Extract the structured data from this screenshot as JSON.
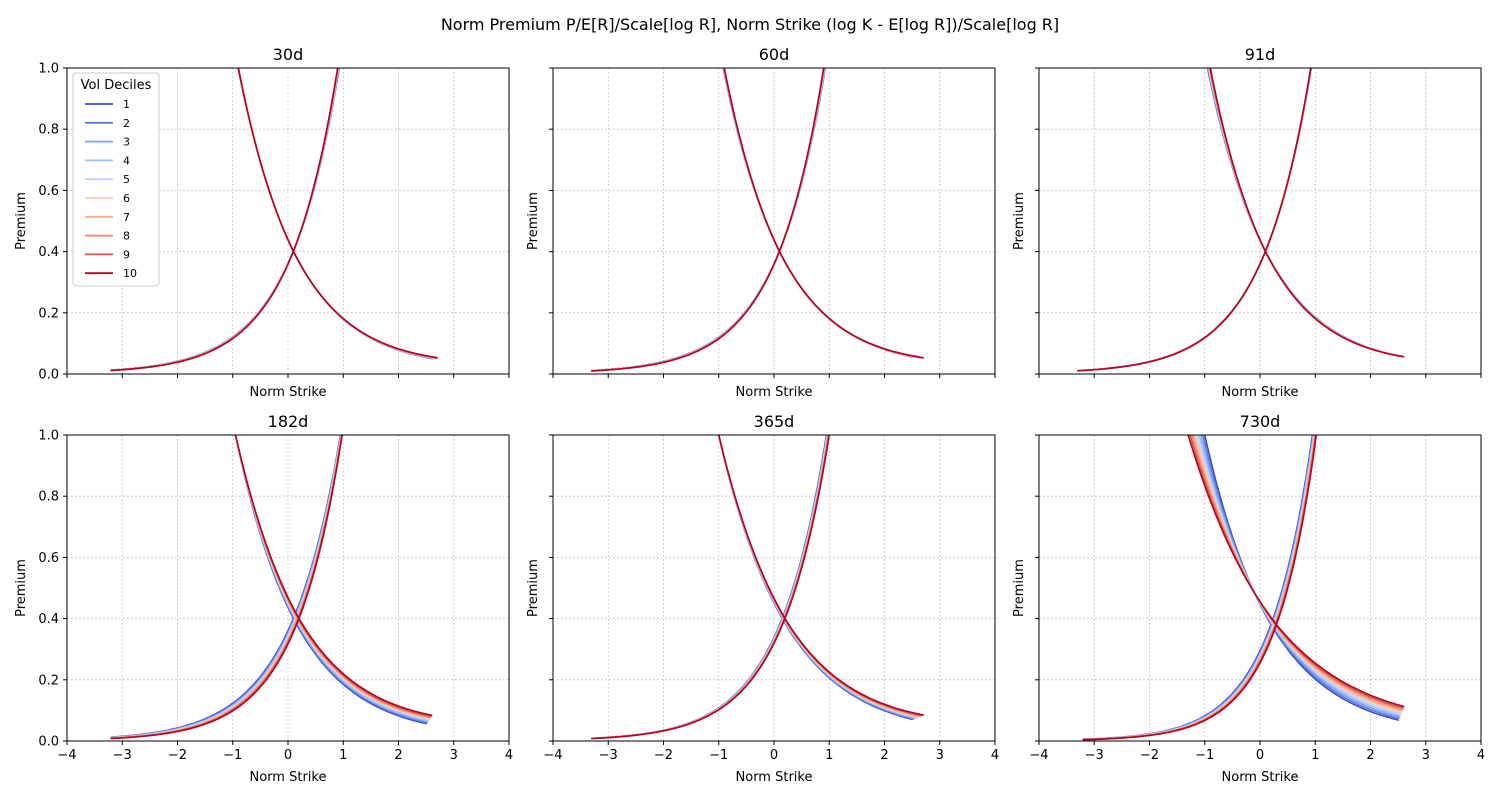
{
  "figure": {
    "suptitle": "Norm Premium P/E[R]/Scale[log R], Norm Strike (log K - E[log R])/Scale[log R]"
  },
  "legend": {
    "title": "Vol Deciles",
    "placement": "upper-left of first panel",
    "entries": [
      "1",
      "2",
      "3",
      "4",
      "5",
      "6",
      "7",
      "8",
      "9",
      "10"
    ],
    "colors": [
      "#3b4cc0",
      "#5a78e4",
      "#7b9ff9",
      "#9ebeff",
      "#c0d4f5",
      "#f2cbb7",
      "#f7ac8e",
      "#ee8468",
      "#d65244",
      "#b40426"
    ]
  },
  "chart_data": [
    {
      "type": "line",
      "title": "30d",
      "xlabel": "Norm Strike",
      "ylabel": "Premium",
      "xlim": [
        -4,
        4
      ],
      "ylim": [
        0,
        1
      ],
      "xticks": [
        "−4",
        "−3",
        "−2",
        "−1",
        "0",
        "1",
        "2",
        "3",
        "4"
      ],
      "yticks": [
        "0.0",
        "0.2",
        "0.4",
        "0.6",
        "0.8",
        "1.0"
      ],
      "show_xticklabels": false,
      "show_yticklabels": true,
      "grid": true,
      "series_range": {
        "decile_1": {
          "x": [
            -3.2,
            2.6
          ],
          "put_cross": [
            0.1,
            0.4
          ],
          "put_at_1": -0.9,
          "call_at_1": 0.93,
          "put_tail": 0.008,
          "call_tail": 0.01
        },
        "decile_10": {
          "x": [
            -3.2,
            2.7
          ],
          "put_cross": [
            0.1,
            0.4
          ],
          "put_at_1": -0.9,
          "call_at_1": 0.9,
          "put_tail": 0.008,
          "call_tail": 0.016
        }
      }
    },
    {
      "type": "line",
      "title": "60d",
      "xlabel": "Norm Strike",
      "ylabel": "Premium",
      "xlim": [
        -4,
        4
      ],
      "ylim": [
        0,
        1
      ],
      "xticks": [
        "−4",
        "−3",
        "−2",
        "−1",
        "0",
        "1",
        "2",
        "3",
        "4"
      ],
      "yticks": [
        "0.0",
        "0.2",
        "0.4",
        "0.6",
        "0.8",
        "1.0"
      ],
      "show_xticklabels": false,
      "show_yticklabels": false,
      "grid": true,
      "series_range": {
        "decile_1": {
          "x": [
            -3.3,
            2.5
          ],
          "put_cross": [
            0.1,
            0.4
          ],
          "put_at_1": -0.92,
          "call_at_1": 0.93,
          "put_tail": 0.006,
          "call_tail": 0.01
        },
        "decile_10": {
          "x": [
            -3.3,
            2.7
          ],
          "put_cross": [
            0.1,
            0.4
          ],
          "put_at_1": -0.9,
          "call_at_1": 0.9,
          "put_tail": 0.006,
          "call_tail": 0.016
        }
      }
    },
    {
      "type": "line",
      "title": "91d",
      "xlabel": "Norm Strike",
      "ylabel": "Premium",
      "xlim": [
        -4,
        4
      ],
      "ylim": [
        0,
        1
      ],
      "xticks": [
        "−4",
        "−3",
        "−2",
        "−1",
        "0",
        "1",
        "2",
        "3",
        "4"
      ],
      "yticks": [
        "0.0",
        "0.2",
        "0.4",
        "0.6",
        "0.8",
        "1.0"
      ],
      "show_xticklabels": false,
      "show_yticklabels": false,
      "grid": true,
      "series_range": {
        "decile_1": {
          "x": [
            -3.2,
            2.5
          ],
          "put_cross": [
            0.1,
            0.4
          ],
          "put_at_1": -0.95,
          "call_at_1": 0.93,
          "put_tail": 0.005,
          "call_tail": 0.01
        },
        "decile_10": {
          "x": [
            -3.3,
            2.6
          ],
          "put_cross": [
            0.1,
            0.4
          ],
          "put_at_1": -0.9,
          "call_at_1": 0.92,
          "put_tail": 0.005,
          "call_tail": 0.016
        }
      }
    },
    {
      "type": "line",
      "title": "182d",
      "xlabel": "Norm Strike",
      "ylabel": "Premium",
      "xlim": [
        -4,
        4
      ],
      "ylim": [
        0,
        1
      ],
      "xticks": [
        "−4",
        "−3",
        "−2",
        "−1",
        "0",
        "1",
        "2",
        "3",
        "4"
      ],
      "yticks": [
        "0.0",
        "0.2",
        "0.4",
        "0.6",
        "0.8",
        "1.0"
      ],
      "show_xticklabels": true,
      "show_yticklabels": true,
      "grid": true,
      "series_range": {
        "decile_1": {
          "x": [
            -3.2,
            2.5
          ],
          "put_cross": [
            0.1,
            0.4
          ],
          "put_at_1": -0.95,
          "call_at_1": 0.95,
          "put_tail": 0.004,
          "call_tail": 0.008
        },
        "decile_10": {
          "x": [
            -3.2,
            2.6
          ],
          "put_cross": [
            0.2,
            0.4
          ],
          "put_at_1": -0.95,
          "call_at_1": 0.98,
          "put_tail": 0.003,
          "call_tail": 0.026
        }
      }
    },
    {
      "type": "line",
      "title": "365d",
      "xlabel": "Norm Strike",
      "ylabel": "Premium",
      "xlim": [
        -4,
        4
      ],
      "ylim": [
        0,
        1
      ],
      "xticks": [
        "−4",
        "−3",
        "−2",
        "−1",
        "0",
        "1",
        "2",
        "3",
        "4"
      ],
      "yticks": [
        "0.0",
        "0.2",
        "0.4",
        "0.6",
        "0.8",
        "1.0"
      ],
      "show_xticklabels": true,
      "show_yticklabels": false,
      "grid": true,
      "series_range": {
        "decile_1": {
          "x": [
            -3.1,
            2.5
          ],
          "put_cross": [
            0.15,
            0.4
          ],
          "put_at_1": -1.0,
          "call_at_1": 0.95,
          "put_tail": 0.004,
          "call_tail": 0.01
        },
        "decile_10": {
          "x": [
            -3.3,
            2.7
          ],
          "put_cross": [
            0.2,
            0.4
          ],
          "put_at_1": -1.0,
          "call_at_1": 1.0,
          "put_tail": 0.003,
          "call_tail": 0.026
        }
      }
    },
    {
      "type": "line",
      "title": "730d",
      "xlabel": "Norm Strike",
      "ylabel": "Premium",
      "xlim": [
        -4,
        4
      ],
      "ylim": [
        0,
        1
      ],
      "xticks": [
        "−4",
        "−3",
        "−2",
        "−1",
        "0",
        "1",
        "2",
        "3",
        "4"
      ],
      "yticks": [
        "0.0",
        "0.2",
        "0.4",
        "0.6",
        "0.8",
        "1.0"
      ],
      "show_xticklabels": true,
      "show_yticklabels": false,
      "grid": true,
      "series_range": {
        "decile_1": {
          "x": [
            -3.2,
            2.5
          ],
          "put_cross": [
            0.2,
            0.38
          ],
          "put_at_1": -1.0,
          "call_at_1": 0.95,
          "put_tail": 0.004,
          "call_tail": 0.01
        },
        "decile_10": {
          "x": [
            -3.2,
            2.6
          ],
          "put_cross": [
            0.3,
            0.38
          ],
          "put_at_1": -1.3,
          "call_at_1": 1.02,
          "put_tail": 0.003,
          "call_tail": 0.02
        }
      }
    }
  ]
}
